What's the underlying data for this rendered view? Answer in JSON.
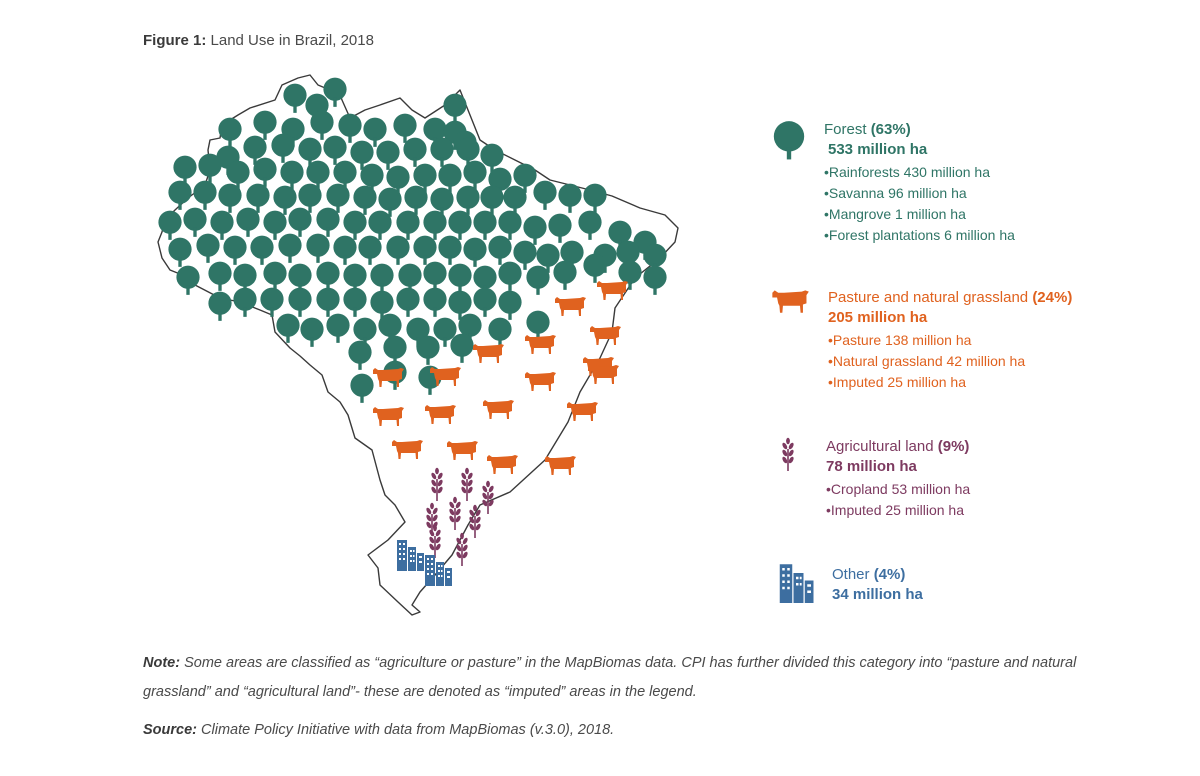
{
  "figure": {
    "label": "Figure 1:",
    "title": "Land Use in Brazil, 2018"
  },
  "colors": {
    "forest": "#2f7566",
    "pasture": "#e0621f",
    "agricultural": "#7d3a60",
    "other": "#3d6ea0"
  },
  "legend": {
    "forest": {
      "icon": "tree-icon",
      "name": "Forest",
      "percent": "(63%)",
      "total": "533 million ha",
      "items": [
        "Rainforests 430 million ha",
        "Savanna 96 million ha",
        "Mangrove 1 million ha",
        "Forest plantations 6 million ha"
      ]
    },
    "pasture": {
      "icon": "cow-icon",
      "name": "Pasture and natural grassland",
      "percent": "(24%)",
      "total": "205 million ha",
      "items": [
        "Pasture 138 million ha",
        "Natural grassland 42 million ha",
        "Imputed 25 million ha"
      ]
    },
    "agricultural": {
      "icon": "wheat-icon",
      "name": "Agricultural land",
      "percent": "(9%)",
      "total": "78 million ha",
      "items": [
        "Cropland 53 million ha",
        "Imputed 25 million ha"
      ]
    },
    "other": {
      "icon": "buildings-icon",
      "name": "Other",
      "percent": "(4%)",
      "total": "34 million ha"
    }
  },
  "note": {
    "label": "Note:",
    "text": "Some areas are classified as “agriculture or pasture” in the MapBiomas data. CPI has further divided this category into “pasture and natural grassland” and “agricultural land”- these are denoted as “imputed” areas in the legend."
  },
  "source": {
    "label": "Source:",
    "text": "Climate Policy Initiative with data from MapBiomas (v.3.0), 2018."
  }
}
